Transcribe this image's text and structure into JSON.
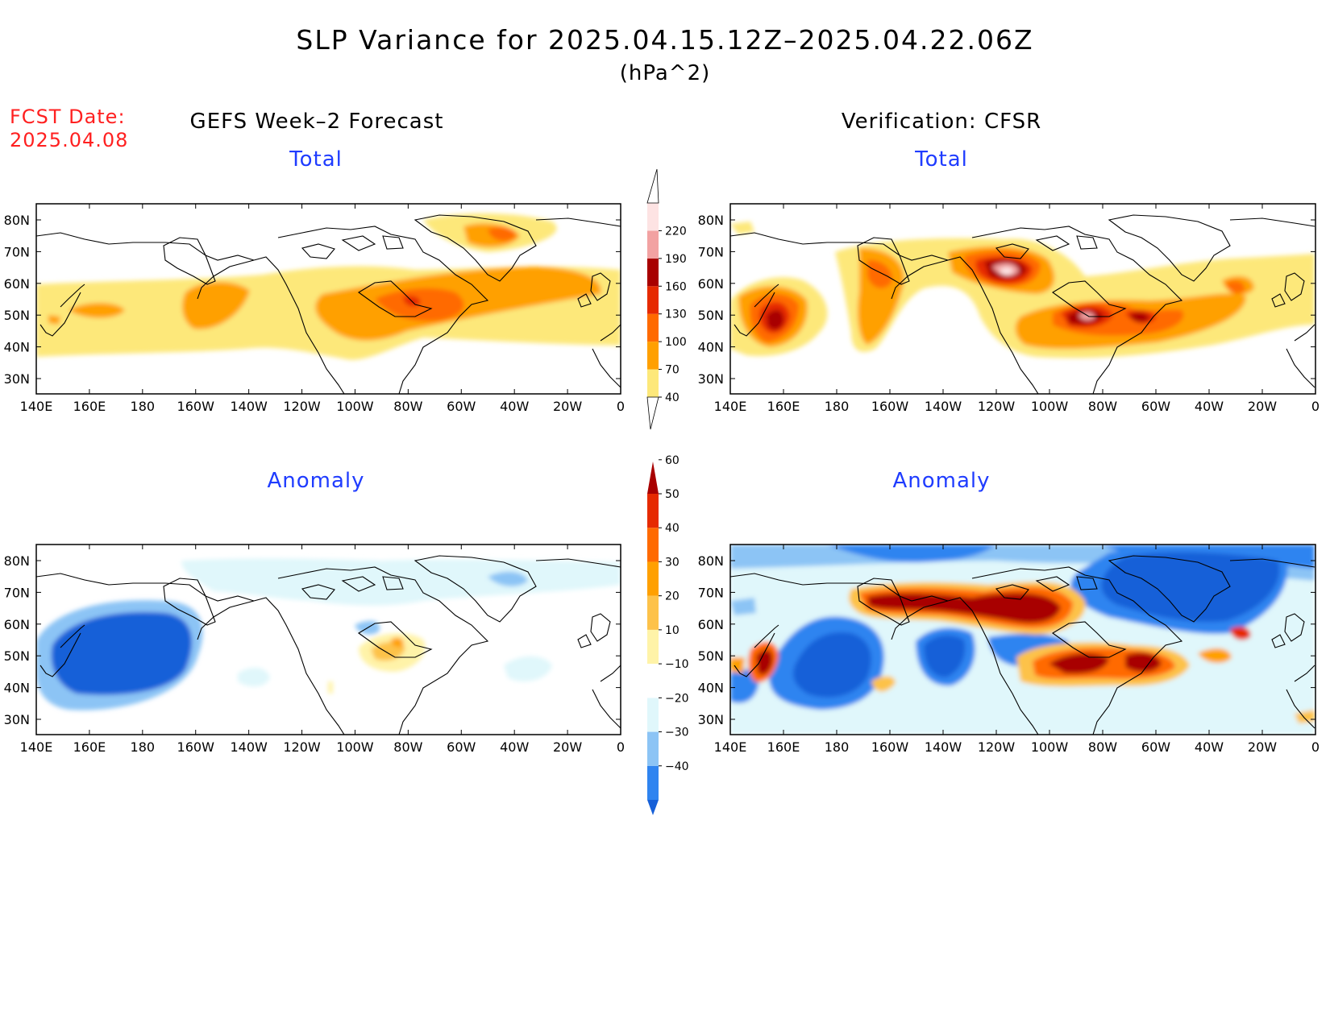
{
  "header": {
    "title": "SLP Variance for 2025.04.15.12Z–2025.04.22.06Z",
    "units": "(hPa^2)",
    "fcst_date_line1": "FCST Date:",
    "fcst_date_line2": "2025.04.08"
  },
  "columns": {
    "left": "GEFS Week–2 Forecast",
    "right": "Verification: CFSR"
  },
  "panels": {
    "total_label": "Total",
    "anomaly_label": "Anomaly"
  },
  "axes": {
    "lon_labels": [
      "140E",
      "160E",
      "180",
      "160W",
      "140W",
      "120W",
      "100W",
      "80W",
      "60W",
      "40W",
      "20W",
      "0"
    ],
    "lat_labels": [
      "30N",
      "40N",
      "50N",
      "60N",
      "70N",
      "80N"
    ]
  },
  "colorbars": {
    "total": {
      "levels": [
        "40",
        "70",
        "100",
        "130",
        "160",
        "190",
        "220"
      ],
      "colors": [
        "#fde87a",
        "#ffa000",
        "#ff6a00",
        "#e62a00",
        "#a80000",
        "#f2a2a2",
        "#fde3e3"
      ]
    },
    "anomaly": {
      "levels": [
        "−40",
        "−30",
        "−20",
        "−10",
        "10",
        "20",
        "30",
        "40",
        "50",
        "60"
      ],
      "colors": [
        "#1660d8",
        "#2f84f0",
        "#8cc4f5",
        "#e0f7fb",
        "#ffffff",
        "#fff3a8",
        "#fdc24a",
        "#ffa000",
        "#ff6a00",
        "#e62a00",
        "#a80000"
      ]
    }
  },
  "palette": {
    "title_blue": "#1f3cff",
    "fcst_red": "#ff2020"
  }
}
